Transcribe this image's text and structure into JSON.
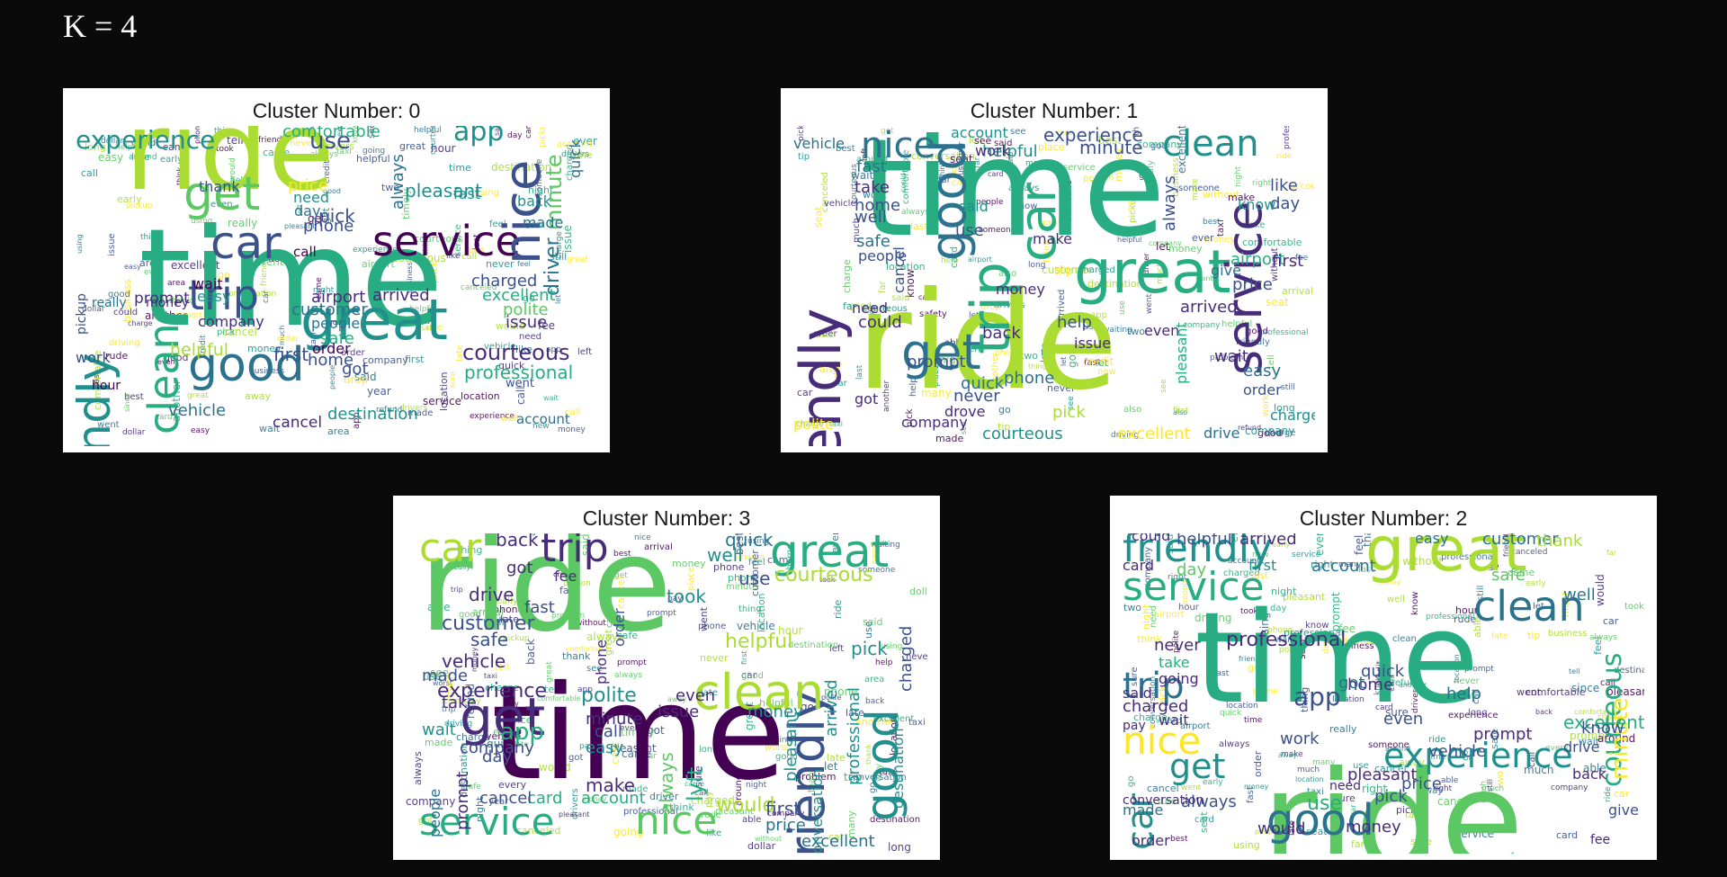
{
  "heading": "K = 4",
  "palette": [
    "#440154",
    "#472c7a",
    "#3b518b",
    "#2c718e",
    "#21908d",
    "#27ad81",
    "#5cc863",
    "#aadc32",
    "#fde725"
  ],
  "panels": [
    {
      "title": "Cluster Number: 0",
      "words": [
        {
          "t": "ride",
          "c": 7
        },
        {
          "t": "time",
          "c": 5
        },
        {
          "t": "great",
          "c": 4
        },
        {
          "t": "service",
          "c": 0
        },
        {
          "t": "friendly",
          "c": 4
        },
        {
          "t": "nice",
          "c": 2
        },
        {
          "t": "car",
          "c": 2
        },
        {
          "t": "get",
          "c": 6
        },
        {
          "t": "trip",
          "c": 2
        },
        {
          "t": "good",
          "c": 3
        },
        {
          "t": "clean",
          "c": 5
        },
        {
          "t": "experience",
          "c": 4
        },
        {
          "t": "app",
          "c": 4
        },
        {
          "t": "courteous",
          "c": 1
        },
        {
          "t": "use",
          "c": 2
        },
        {
          "t": "minute",
          "c": 6
        },
        {
          "t": "professional",
          "c": 5
        },
        {
          "t": "driver",
          "c": 3
        },
        {
          "t": "charged",
          "c": 2
        },
        {
          "t": "excellent",
          "c": 5
        },
        {
          "t": "arrived",
          "c": 1
        },
        {
          "t": "pleasant",
          "c": 4
        },
        {
          "t": "customer",
          "c": 3
        },
        {
          "t": "airport",
          "c": 1
        },
        {
          "t": "destination",
          "c": 4
        },
        {
          "t": "comfortable",
          "c": 5
        },
        {
          "t": "issue",
          "c": 1
        },
        {
          "t": "polite",
          "c": 6
        },
        {
          "t": "safe",
          "c": 5
        },
        {
          "t": "always",
          "c": 3
        },
        {
          "t": "money",
          "c": 1
        },
        {
          "t": "phone",
          "c": 2
        },
        {
          "t": "prompt",
          "c": 1
        },
        {
          "t": "quick",
          "c": 3
        },
        {
          "t": "wait",
          "c": 0
        },
        {
          "t": "easy",
          "c": 4
        },
        {
          "t": "order",
          "c": 0
        },
        {
          "t": "back",
          "c": 4
        },
        {
          "t": "pick",
          "c": 2
        },
        {
          "t": "fast",
          "c": 4
        },
        {
          "t": "made",
          "c": 3
        },
        {
          "t": "call",
          "c": 0
        },
        {
          "t": "thank",
          "c": 2
        },
        {
          "t": "day",
          "c": 3
        },
        {
          "t": "need",
          "c": 4
        },
        {
          "t": "price",
          "c": 8
        },
        {
          "t": "helpful",
          "c": 7
        },
        {
          "t": "went",
          "c": 2
        },
        {
          "t": "hour",
          "c": 0
        },
        {
          "t": "cancel",
          "c": 1
        },
        {
          "t": "account",
          "c": 3
        },
        {
          "t": "first",
          "c": 2
        },
        {
          "t": "got",
          "c": 2
        },
        {
          "t": "home",
          "c": 2
        },
        {
          "t": "people",
          "c": 3
        },
        {
          "t": "work",
          "c": 2
        },
        {
          "t": "vehicle",
          "c": 3
        },
        {
          "t": "pickup",
          "c": 2
        },
        {
          "t": "company",
          "c": 1
        },
        {
          "t": "really",
          "c": 3
        }
      ]
    },
    {
      "title": "Cluster Number: 1",
      "words": [
        {
          "t": "time",
          "c": 5
        },
        {
          "t": "ride",
          "c": 7
        },
        {
          "t": "great",
          "c": 5
        },
        {
          "t": "service",
          "c": 1
        },
        {
          "t": "friendly",
          "c": 1
        },
        {
          "t": "nice",
          "c": 3
        },
        {
          "t": "clean",
          "c": 4
        },
        {
          "t": "car",
          "c": 5
        },
        {
          "t": "get",
          "c": 3
        },
        {
          "t": "good",
          "c": 3
        },
        {
          "t": "trip",
          "c": 5
        },
        {
          "t": "experience",
          "c": 2
        },
        {
          "t": "courteous",
          "c": 4
        },
        {
          "t": "excellent",
          "c": 8
        },
        {
          "t": "arrived",
          "c": 1
        },
        {
          "t": "pleasant",
          "c": 5
        },
        {
          "t": "order",
          "c": 2
        },
        {
          "t": "easy",
          "c": 3
        },
        {
          "t": "minute",
          "c": 2
        },
        {
          "t": "account",
          "c": 4
        },
        {
          "t": "always",
          "c": 2
        },
        {
          "t": "airport",
          "c": 5
        },
        {
          "t": "helpful",
          "c": 4
        },
        {
          "t": "money",
          "c": 1
        },
        {
          "t": "phone",
          "c": 3
        },
        {
          "t": "quick",
          "c": 3
        },
        {
          "t": "never",
          "c": 2
        },
        {
          "t": "prompt",
          "c": 2
        },
        {
          "t": "company",
          "c": 1
        },
        {
          "t": "drive",
          "c": 3
        },
        {
          "t": "charge",
          "c": 4
        },
        {
          "t": "polite",
          "c": 8
        },
        {
          "t": "vehicle",
          "c": 3
        },
        {
          "t": "fast",
          "c": 3
        },
        {
          "t": "take",
          "c": 1
        },
        {
          "t": "home",
          "c": 2
        },
        {
          "t": "well",
          "c": 2
        },
        {
          "t": "safe",
          "c": 3
        },
        {
          "t": "people",
          "c": 2
        },
        {
          "t": "could",
          "c": 1
        },
        {
          "t": "back",
          "c": 1
        },
        {
          "t": "help",
          "c": 2
        },
        {
          "t": "issue",
          "c": 1
        },
        {
          "t": "even",
          "c": 1
        },
        {
          "t": "wait",
          "c": 1
        },
        {
          "t": "first",
          "c": 1
        },
        {
          "t": "price",
          "c": 2
        },
        {
          "t": "use",
          "c": 2
        },
        {
          "t": "said",
          "c": 4
        },
        {
          "t": "make",
          "c": 1
        },
        {
          "t": "work",
          "c": 1
        },
        {
          "t": "like",
          "c": 2
        },
        {
          "t": "day",
          "c": 2
        },
        {
          "t": "know",
          "c": 4
        },
        {
          "t": "give",
          "c": 3
        },
        {
          "t": "got",
          "c": 1
        },
        {
          "t": "need",
          "c": 1
        },
        {
          "t": "cancel",
          "c": 2
        },
        {
          "t": "pick",
          "c": 7
        },
        {
          "t": "drove",
          "c": 1
        }
      ]
    },
    {
      "title": "Cluster Number: 3",
      "words": [
        {
          "t": "ride",
          "c": 6
        },
        {
          "t": "time",
          "c": 0
        },
        {
          "t": "service",
          "c": 5
        },
        {
          "t": "nice",
          "c": 6
        },
        {
          "t": "great",
          "c": 5
        },
        {
          "t": "friendly",
          "c": 2
        },
        {
          "t": "car",
          "c": 7
        },
        {
          "t": "trip",
          "c": 1
        },
        {
          "t": "get",
          "c": 1
        },
        {
          "t": "clean",
          "c": 7
        },
        {
          "t": "good",
          "c": 4
        },
        {
          "t": "experience",
          "c": 1
        },
        {
          "t": "courteous",
          "c": 7
        },
        {
          "t": "excellent",
          "c": 3
        },
        {
          "t": "professional",
          "c": 4
        },
        {
          "t": "helpful",
          "c": 7
        },
        {
          "t": "customer",
          "c": 2
        },
        {
          "t": "vehicle",
          "c": 1
        },
        {
          "t": "company",
          "c": 2
        },
        {
          "t": "polite",
          "c": 4
        },
        {
          "t": "minute",
          "c": 1
        },
        {
          "t": "charged",
          "c": 2
        },
        {
          "t": "destination",
          "c": 4
        },
        {
          "t": "conversation",
          "c": 4
        },
        {
          "t": "pleasant",
          "c": 4
        },
        {
          "t": "arrived",
          "c": 4
        },
        {
          "t": "would",
          "c": 7
        },
        {
          "t": "pick",
          "c": 4
        },
        {
          "t": "price",
          "c": 3
        },
        {
          "t": "first",
          "c": 2
        },
        {
          "t": "lyft",
          "c": 5
        },
        {
          "t": "always",
          "c": 6
        },
        {
          "t": "easy",
          "c": 4
        },
        {
          "t": "make",
          "c": 1
        },
        {
          "t": "app",
          "c": 5
        },
        {
          "t": "drive",
          "c": 1
        },
        {
          "t": "fast",
          "c": 2
        },
        {
          "t": "safe",
          "c": 2
        },
        {
          "t": "back",
          "c": 1
        },
        {
          "t": "quick",
          "c": 3
        },
        {
          "t": "well",
          "c": 4
        },
        {
          "t": "use",
          "c": 2
        },
        {
          "t": "got",
          "c": 1
        },
        {
          "t": "fee",
          "c": 1
        },
        {
          "t": "took",
          "c": 4
        },
        {
          "t": "order",
          "c": 2
        },
        {
          "t": "phone",
          "c": 1
        },
        {
          "t": "money",
          "c": 4
        },
        {
          "t": "issue",
          "c": 1
        },
        {
          "t": "even",
          "c": 1
        },
        {
          "t": "wait",
          "c": 4
        },
        {
          "t": "take",
          "c": 1
        },
        {
          "t": "call",
          "c": 2
        },
        {
          "t": "made",
          "c": 2
        },
        {
          "t": "people",
          "c": 3
        },
        {
          "t": "prompt",
          "c": 1
        },
        {
          "t": "account",
          "c": 5
        },
        {
          "t": "card",
          "c": 5
        },
        {
          "t": "cancel",
          "c": 2
        },
        {
          "t": "day",
          "c": 2
        }
      ]
    },
    {
      "title": "Cluster Number: 2",
      "words": [
        {
          "t": "time",
          "c": 5
        },
        {
          "t": "ride",
          "c": 6
        },
        {
          "t": "great",
          "c": 7
        },
        {
          "t": "friendly",
          "c": 4
        },
        {
          "t": "service",
          "c": 5
        },
        {
          "t": "clean",
          "c": 3
        },
        {
          "t": "good",
          "c": 3
        },
        {
          "t": "trip",
          "c": 3
        },
        {
          "t": "experience",
          "c": 4
        },
        {
          "t": "nice",
          "c": 8
        },
        {
          "t": "car",
          "c": 4
        },
        {
          "t": "get",
          "c": 4
        },
        {
          "t": "app",
          "c": 2
        },
        {
          "t": "use",
          "c": 5
        },
        {
          "t": "courteous",
          "c": 5
        },
        {
          "t": "minute",
          "c": 8
        },
        {
          "t": "professional",
          "c": 1
        },
        {
          "t": "help",
          "c": 3
        },
        {
          "t": "prompt",
          "c": 1
        },
        {
          "t": "charged",
          "c": 1
        },
        {
          "t": "pleasant",
          "c": 1
        },
        {
          "t": "always",
          "c": 2
        },
        {
          "t": "would",
          "c": 1
        },
        {
          "t": "money",
          "c": 1
        },
        {
          "t": "customer",
          "c": 3
        },
        {
          "t": "arrived",
          "c": 1
        },
        {
          "t": "helpful",
          "c": 2
        },
        {
          "t": "easy",
          "c": 3
        },
        {
          "t": "safe",
          "c": 6
        },
        {
          "t": "never",
          "c": 1
        },
        {
          "t": "take",
          "c": 5
        },
        {
          "t": "going",
          "c": 1
        },
        {
          "t": "work",
          "c": 2
        },
        {
          "t": "home",
          "c": 1
        },
        {
          "t": "pick",
          "c": 2
        },
        {
          "t": "quick",
          "c": 2
        },
        {
          "t": "even",
          "c": 2
        },
        {
          "t": "card",
          "c": 1
        },
        {
          "t": "first",
          "c": 4
        },
        {
          "t": "account",
          "c": 3
        },
        {
          "t": "vehicle",
          "c": 2
        },
        {
          "t": "excellent",
          "c": 5
        },
        {
          "t": "drive",
          "c": 2
        },
        {
          "t": "back",
          "c": 1
        },
        {
          "t": "price",
          "c": 2
        },
        {
          "t": "thank",
          "c": 7
        },
        {
          "t": "order",
          "c": 1
        },
        {
          "t": "know",
          "c": 2
        },
        {
          "t": "give",
          "c": 2
        },
        {
          "t": "fee",
          "c": 1
        },
        {
          "t": "got",
          "c": 3
        },
        {
          "t": "said",
          "c": 1
        },
        {
          "t": "made",
          "c": 3
        },
        {
          "t": "could",
          "c": 1
        },
        {
          "t": "wait",
          "c": 1
        },
        {
          "t": "conversation",
          "c": 1
        },
        {
          "t": "day",
          "c": 6
        },
        {
          "t": "well",
          "c": 3
        },
        {
          "t": "pay",
          "c": 1
        },
        {
          "t": "need",
          "c": 1
        }
      ]
    }
  ]
}
